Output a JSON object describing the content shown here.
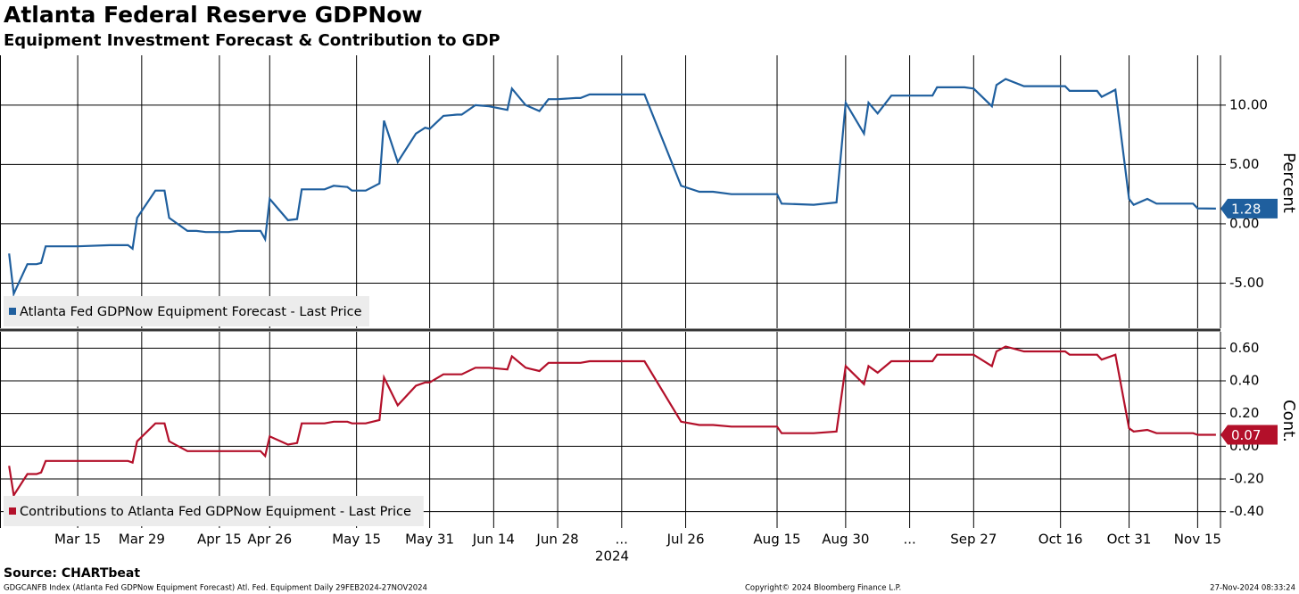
{
  "title": "Atlanta Federal Reserve GDPNow",
  "subtitle": "Equipment Investment Forecast & Contribution to GDP",
  "footer": {
    "source": "Source: CHARTbeat",
    "index": "GDGCANFB Index (Atlanta Fed GDPNow Equipment Forecast) Atl. Fed. Equipment  Daily 29FEB2024-27NOV2024",
    "copyright": "Copyright© 2024 Bloomberg Finance L.P.",
    "timestamp": "27-Nov-2024 08:33:24"
  },
  "chart_data": [
    {
      "type": "line",
      "ylabel": "Percent",
      "grid": true,
      "legend": "bottom-left",
      "xlim": [
        "2024-02-27",
        "2024-11-20"
      ],
      "ylim": [
        -8.8,
        14.2
      ],
      "yticks": [
        {
          "value": -5,
          "label": "-5.00"
        },
        {
          "value": 0,
          "label": "0.00"
        },
        {
          "value": 5,
          "label": "5.00"
        },
        {
          "value": 10,
          "label": "10.00"
        }
      ],
      "x": [
        "2024-02-29",
        "2024-03-01",
        "2024-03-04",
        "2024-03-06",
        "2024-03-07",
        "2024-03-08",
        "2024-03-13",
        "2024-03-15",
        "2024-03-22",
        "2024-03-26",
        "2024-03-27",
        "2024-03-28",
        "2024-04-01",
        "2024-04-03",
        "2024-04-04",
        "2024-04-08",
        "2024-04-10",
        "2024-04-12",
        "2024-04-17",
        "2024-04-19",
        "2024-04-24",
        "2024-04-25",
        "2024-04-26",
        "2024-04-30",
        "2024-05-02",
        "2024-05-03",
        "2024-05-08",
        "2024-05-10",
        "2024-05-13",
        "2024-05-14",
        "2024-05-16",
        "2024-05-17",
        "2024-05-20",
        "2024-05-21",
        "2024-05-24",
        "2024-05-28",
        "2024-05-30",
        "2024-05-31",
        "2024-06-03",
        "2024-06-06",
        "2024-06-07",
        "2024-06-10",
        "2024-06-13",
        "2024-06-17",
        "2024-06-18",
        "2024-06-21",
        "2024-06-24",
        "2024-06-26",
        "2024-06-28",
        "2024-07-02",
        "2024-07-03",
        "2024-07-05",
        "2024-07-17",
        "2024-07-25",
        "2024-07-29",
        "2024-08-01",
        "2024-08-05",
        "2024-08-15",
        "2024-08-16",
        "2024-08-23",
        "2024-08-28",
        "2024-08-30",
        "2024-09-03",
        "2024-09-04",
        "2024-09-06",
        "2024-09-09",
        "2024-09-18",
        "2024-09-19",
        "2024-09-25",
        "2024-09-27",
        "2024-10-01",
        "2024-10-02",
        "2024-10-04",
        "2024-10-08",
        "2024-10-17",
        "2024-10-18",
        "2024-10-24",
        "2024-10-25",
        "2024-10-28",
        "2024-10-31",
        "2024-11-01",
        "2024-11-04",
        "2024-11-06",
        "2024-11-14",
        "2024-11-15",
        "2024-11-19"
      ],
      "series": [
        {
          "name": "Atlanta Fed GDPNow Equipment Forecast - Last Price",
          "color": "#1f5f9e",
          "values": [
            -2.5,
            -5.9,
            -3.4,
            -3.4,
            -3.3,
            -1.9,
            -1.9,
            -1.9,
            -1.8,
            -1.8,
            -2.1,
            0.5,
            2.8,
            2.8,
            0.5,
            -0.6,
            -0.6,
            -0.7,
            -0.7,
            -0.6,
            -0.6,
            -1.3,
            2.1,
            0.3,
            0.4,
            2.9,
            2.9,
            3.2,
            3.1,
            2.8,
            2.8,
            2.8,
            3.4,
            8.7,
            5.2,
            7.6,
            8.1,
            8.0,
            9.1,
            9.2,
            9.2,
            10.0,
            9.9,
            9.6,
            11.4,
            10.0,
            9.5,
            10.5,
            10.5,
            10.6,
            10.6,
            10.9,
            10.9,
            3.2,
            2.7,
            2.7,
            2.5,
            2.5,
            1.7,
            1.6,
            1.8,
            10.2,
            7.6,
            10.2,
            9.3,
            10.8,
            10.8,
            11.5,
            11.5,
            11.4,
            9.9,
            11.7,
            12.2,
            11.6,
            11.6,
            11.2,
            11.2,
            10.7,
            11.3,
            2.1,
            1.6,
            2.1,
            1.7,
            1.7,
            1.3,
            1.28
          ]
        }
      ]
    },
    {
      "type": "line",
      "ylabel": "Cont.",
      "grid": true,
      "legend": "bottom-left",
      "xlabel": "2024",
      "xlim": [
        "2024-02-27",
        "2024-11-20"
      ],
      "ylim": [
        -0.5,
        0.7
      ],
      "xticks": [
        {
          "value": "2024-03-15",
          "label": "Mar 15"
        },
        {
          "value": "2024-03-29",
          "label": "Mar 29"
        },
        {
          "value": "2024-04-15",
          "label": "Apr 15"
        },
        {
          "value": "2024-04-26",
          "label": "Apr 26"
        },
        {
          "value": "2024-05-15",
          "label": "May 15"
        },
        {
          "value": "2024-05-31",
          "label": "May 31"
        },
        {
          "value": "2024-06-14",
          "label": "Jun 14"
        },
        {
          "value": "2024-06-28",
          "label": "Jun 28"
        },
        {
          "value": "2024-07-12",
          "label": "..."
        },
        {
          "value": "2024-07-26",
          "label": "Jul 26"
        },
        {
          "value": "2024-08-15",
          "label": "Aug 15"
        },
        {
          "value": "2024-08-30",
          "label": "Aug 30"
        },
        {
          "value": "2024-09-13",
          "label": "..."
        },
        {
          "value": "2024-09-27",
          "label": "Sep 27"
        },
        {
          "value": "2024-10-16",
          "label": "Oct 16"
        },
        {
          "value": "2024-10-31",
          "label": "Oct 31"
        },
        {
          "value": "2024-11-15",
          "label": "Nov 15"
        }
      ],
      "yticks": [
        {
          "value": -0.4,
          "label": "-0.40"
        },
        {
          "value": -0.2,
          "label": "-0.20"
        },
        {
          "value": 0,
          "label": "0.00"
        },
        {
          "value": 0.2,
          "label": "0.20"
        },
        {
          "value": 0.4,
          "label": "0.40"
        },
        {
          "value": 0.6,
          "label": "0.60"
        }
      ],
      "x": [
        "2024-02-29",
        "2024-03-01",
        "2024-03-04",
        "2024-03-06",
        "2024-03-07",
        "2024-03-08",
        "2024-03-13",
        "2024-03-15",
        "2024-03-22",
        "2024-03-26",
        "2024-03-27",
        "2024-03-28",
        "2024-04-01",
        "2024-04-03",
        "2024-04-04",
        "2024-04-08",
        "2024-04-10",
        "2024-04-12",
        "2024-04-17",
        "2024-04-19",
        "2024-04-24",
        "2024-04-25",
        "2024-04-26",
        "2024-04-30",
        "2024-05-02",
        "2024-05-03",
        "2024-05-08",
        "2024-05-10",
        "2024-05-13",
        "2024-05-14",
        "2024-05-16",
        "2024-05-17",
        "2024-05-20",
        "2024-05-21",
        "2024-05-24",
        "2024-05-28",
        "2024-05-30",
        "2024-05-31",
        "2024-06-03",
        "2024-06-06",
        "2024-06-07",
        "2024-06-10",
        "2024-06-13",
        "2024-06-17",
        "2024-06-18",
        "2024-06-21",
        "2024-06-24",
        "2024-06-26",
        "2024-06-28",
        "2024-07-02",
        "2024-07-03",
        "2024-07-05",
        "2024-07-17",
        "2024-07-25",
        "2024-07-29",
        "2024-08-01",
        "2024-08-05",
        "2024-08-15",
        "2024-08-16",
        "2024-08-23",
        "2024-08-28",
        "2024-08-30",
        "2024-09-03",
        "2024-09-04",
        "2024-09-06",
        "2024-09-09",
        "2024-09-18",
        "2024-09-19",
        "2024-09-25",
        "2024-09-27",
        "2024-10-01",
        "2024-10-02",
        "2024-10-04",
        "2024-10-08",
        "2024-10-17",
        "2024-10-18",
        "2024-10-24",
        "2024-10-25",
        "2024-10-28",
        "2024-10-31",
        "2024-11-01",
        "2024-11-04",
        "2024-11-06",
        "2024-11-14",
        "2024-11-15",
        "2024-11-19"
      ],
      "series": [
        {
          "name": "Contributions to Atlanta Fed GDPNow Equipment - Last Price",
          "color": "#b3102a",
          "values": [
            -0.12,
            -0.3,
            -0.17,
            -0.17,
            -0.16,
            -0.09,
            -0.09,
            -0.09,
            -0.09,
            -0.09,
            -0.1,
            0.03,
            0.14,
            0.14,
            0.03,
            -0.03,
            -0.03,
            -0.03,
            -0.03,
            -0.03,
            -0.03,
            -0.06,
            0.06,
            0.01,
            0.02,
            0.14,
            0.14,
            0.15,
            0.15,
            0.14,
            0.14,
            0.14,
            0.16,
            0.42,
            0.25,
            0.37,
            0.39,
            0.39,
            0.44,
            0.44,
            0.44,
            0.48,
            0.48,
            0.47,
            0.55,
            0.48,
            0.46,
            0.51,
            0.51,
            0.51,
            0.51,
            0.52,
            0.52,
            0.15,
            0.13,
            0.13,
            0.12,
            0.12,
            0.08,
            0.08,
            0.09,
            0.49,
            0.38,
            0.49,
            0.45,
            0.52,
            0.52,
            0.56,
            0.56,
            0.56,
            0.49,
            0.58,
            0.61,
            0.58,
            0.58,
            0.56,
            0.56,
            0.53,
            0.56,
            0.11,
            0.09,
            0.1,
            0.08,
            0.08,
            0.07,
            0.07
          ]
        }
      ]
    }
  ]
}
